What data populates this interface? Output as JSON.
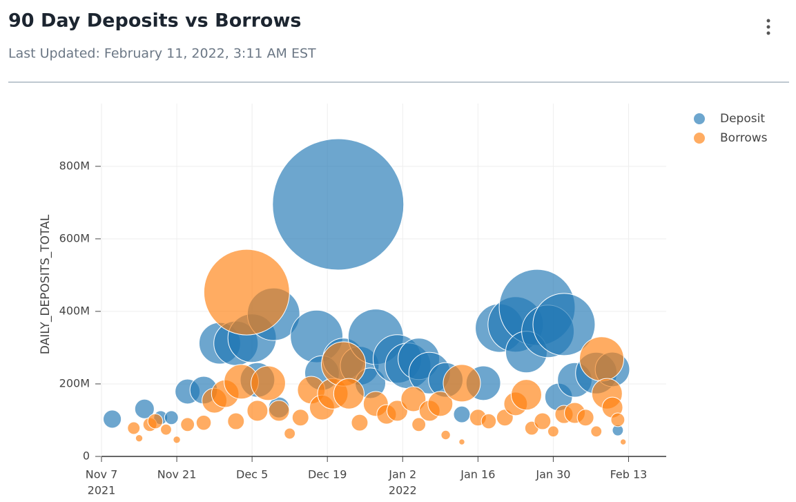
{
  "header": {
    "title": "90 Day Deposits vs Borrows",
    "subtitle": "Last Updated: February 11, 2022, 3:11 AM EST"
  },
  "chart_data": {
    "type": "scatter",
    "y_label": "DAILY_DEPOSITS_TOTAL",
    "grid": true,
    "legend": "top-right",
    "xlim": [
      "2021-11-07",
      "2022-02-20"
    ],
    "ylim": [
      0,
      973000000
    ],
    "xticks": [
      {
        "value": "2021-11-07",
        "label": "Nov 7",
        "year": "2021"
      },
      {
        "value": "2021-11-21",
        "label": "Nov 21"
      },
      {
        "value": "2021-12-05",
        "label": "Dec 5"
      },
      {
        "value": "2021-12-19",
        "label": "Dec 19"
      },
      {
        "value": "2022-01-02",
        "label": "Jan 2",
        "year": "2022"
      },
      {
        "value": "2022-01-16",
        "label": "Jan 16"
      },
      {
        "value": "2022-01-30",
        "label": "Jan 30"
      },
      {
        "value": "2022-02-13",
        "label": "Feb 13"
      }
    ],
    "yticks": [
      0,
      {
        "value": 200000000,
        "label": "200M"
      },
      {
        "value": 400000000,
        "label": "400M"
      },
      {
        "value": 600000000,
        "label": "600M"
      },
      {
        "value": 800000000,
        "label": "800M"
      }
    ],
    "series": [
      {
        "name": "Deposit",
        "color": "#1f77b4",
        "x": [
          "2021-11-09",
          "2021-11-15",
          "2021-11-18",
          "2021-11-20",
          "2021-11-23",
          "2021-11-26",
          "2021-11-29",
          "2021-12-02",
          "2021-12-05",
          "2021-12-09",
          "2021-12-06",
          "2021-12-10",
          "2021-12-17",
          "2021-12-21",
          "2021-12-18",
          "2021-12-22",
          "2021-12-25",
          "2021-12-28",
          "2021-12-27",
          "2022-01-01",
          "2022-01-03",
          "2022-01-05",
          "2022-01-07",
          "2022-01-10",
          "2022-01-13",
          "2022-01-17",
          "2022-01-20",
          "2022-01-23",
          "2022-01-27",
          "2022-01-25",
          "2022-01-29",
          "2022-02-01",
          "2022-01-31",
          "2022-02-03",
          "2022-02-07",
          "2022-02-10",
          "2022-02-11"
        ],
        "values": [
          103000000,
          131000000,
          107000000,
          107000000,
          179000000,
          183000000,
          312000000,
          312000000,
          326000000,
          392000000,
          211000000,
          135000000,
          331000000,
          695000000,
          230000000,
          269000000,
          250000000,
          330000000,
          202000000,
          269000000,
          250000000,
          269000000,
          230000000,
          211000000,
          116000000,
          202000000,
          354000000,
          364000000,
          411000000,
          288000000,
          345000000,
          364000000,
          164000000,
          211000000,
          230000000,
          240000000,
          72000000
        ],
        "sizes": [
          19,
          22,
          11,
          11,
          36,
          44,
          100,
          114,
          136,
          160,
          69,
          25,
          160,
          1003,
          69,
          100,
          87,
          178,
          54,
          136,
          121,
          100,
          100,
          69,
          16,
          69,
          136,
          178,
          336,
          100,
          160,
          225,
          44,
          69,
          100,
          69,
          7
        ]
      },
      {
        "name": "Borrows",
        "color": "#ff7f0e",
        "x": [
          "2021-11-13",
          "2021-11-14",
          "2021-11-16",
          "2021-11-17",
          "2021-11-19",
          "2021-11-21",
          "2021-11-23",
          "2021-11-26",
          "2021-11-28",
          "2021-11-30",
          "2021-12-02",
          "2021-12-04",
          "2021-12-03",
          "2021-12-06",
          "2021-12-08",
          "2021-12-10",
          "2021-12-12",
          "2021-12-14",
          "2021-12-16",
          "2021-12-18",
          "2021-12-20",
          "2021-12-22",
          "2021-12-23",
          "2021-12-25",
          "2021-12-28",
          "2021-12-30",
          "2022-01-01",
          "2022-01-04",
          "2022-01-05",
          "2022-01-07",
          "2022-01-09",
          "2022-01-13",
          "2022-01-10",
          "2022-01-13",
          "2022-01-16",
          "2022-01-18",
          "2022-01-21",
          "2022-01-23",
          "2022-01-25",
          "2022-01-26",
          "2022-01-28",
          "2022-01-30",
          "2022-02-01",
          "2022-02-03",
          "2022-02-05",
          "2022-02-07",
          "2022-02-08",
          "2022-02-09",
          "2022-02-10",
          "2022-02-11",
          "2022-02-12"
        ],
        "values": [
          78000000,
          50000000,
          88000000,
          97000000,
          74000000,
          46000000,
          88000000,
          93000000,
          154000000,
          173000000,
          97000000,
          453000000,
          206000000,
          126000000,
          202000000,
          126000000,
          63000000,
          107000000,
          183000000,
          135000000,
          173000000,
          255000000,
          173000000,
          93000000,
          145000000,
          116000000,
          126000000,
          158000000,
          88000000,
          126000000,
          145000000,
          202000000,
          59000000,
          40000000,
          107000000,
          97000000,
          107000000,
          145000000,
          170000000,
          78000000,
          97000000,
          69000000,
          116000000,
          120000000,
          107000000,
          69000000,
          269000000,
          173000000,
          135000000,
          101000000,
          40000000
        ],
        "sizes": [
          9,
          3,
          11,
          13,
          7,
          3,
          11,
          13,
          36,
          44,
          16,
          427,
          69,
          25,
          69,
          25,
          7,
          16,
          44,
          36,
          54,
          114,
          54,
          16,
          36,
          22,
          25,
          36,
          11,
          25,
          36,
          81,
          5,
          2,
          16,
          13,
          16,
          32,
          54,
          11,
          16,
          7,
          19,
          25,
          16,
          7,
          114,
          54,
          25,
          11,
          2
        ]
      }
    ]
  }
}
